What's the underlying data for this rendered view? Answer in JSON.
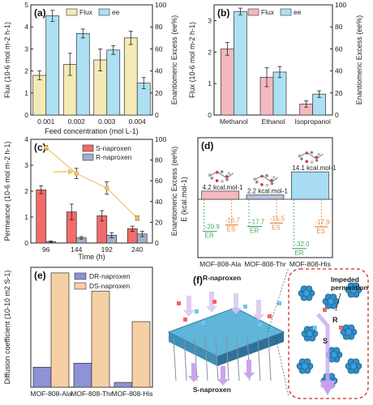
{
  "colors": {
    "flux": "#f4eab6",
    "ee": "#aee0f4",
    "flux_b": "#f4b9bf",
    "ee_b": "#aee0f4",
    "s_naproxen": "#f26b6b",
    "r_naproxen": "#9fb0cc",
    "ee_line": "#f0c56a",
    "bar_d": "#a7dcf3",
    "green": "#4aa86a",
    "orange": "#e38a3b",
    "d_r": "#8e92d6",
    "d_s": "#f7cfa5",
    "frame_f": "#d22c2c"
  },
  "chart_data": [
    {
      "panel": "(a)",
      "type": "bar",
      "categories": [
        "0.001",
        "0.002",
        "0.003",
        "0.004"
      ],
      "xlabel": "Feed concentration (mol L-1)",
      "ylabel": "Flux (10-6 mol m-2 h-1)",
      "y2label": "Enantiomeric Excess (ee%)",
      "ylim": [
        0,
        5
      ],
      "yticks": [
        "0",
        "1",
        "2",
        "3",
        "4",
        "5"
      ],
      "y2lim": [
        0,
        100
      ],
      "y2ticks": [
        "0",
        "20",
        "40",
        "60",
        "80",
        "100"
      ],
      "legend": [
        "Flux",
        "ee"
      ],
      "series": [
        {
          "name": "Flux",
          "values": [
            1.8,
            2.3,
            2.5,
            3.5
          ],
          "err": [
            0.2,
            0.5,
            0.5,
            0.3
          ]
        },
        {
          "name": "ee",
          "values": [
            90,
            74,
            59,
            29
          ],
          "err": [
            5,
            4,
            4,
            5
          ],
          "axis": "right"
        }
      ]
    },
    {
      "panel": "(b)",
      "type": "bar",
      "categories": [
        "Methanol",
        "Ethanol",
        "Isopropanol"
      ],
      "ylabel": "Flux (10-6 mol m-2 h-1)",
      "y2label": "Enantiomeric Excess (ee%)",
      "ylim": [
        0,
        3.5
      ],
      "yticks": [
        "0",
        "1",
        "2",
        "3"
      ],
      "y2lim": [
        0,
        100
      ],
      "y2ticks": [
        "0",
        "20",
        "40",
        "60",
        "80",
        "100"
      ],
      "legend": [
        "Flux",
        "ee"
      ],
      "series": [
        {
          "name": "Flux",
          "values": [
            2.1,
            1.2,
            0.35
          ],
          "err": [
            0.2,
            0.3,
            0.1
          ]
        },
        {
          "name": "ee",
          "values": [
            94,
            39,
            19
          ],
          "err": [
            3,
            5,
            3
          ],
          "axis": "right"
        }
      ]
    },
    {
      "panel": "(c)",
      "type": "bar",
      "categories": [
        "96",
        "144",
        "192",
        "240"
      ],
      "xlabel": "Time (h)",
      "ylabel": "Permeance (10-6 mol m-2 h-1)",
      "y2label": "Enantiomeric Excess (ee%)",
      "ylim": [
        0,
        4
      ],
      "yticks": [
        "0",
        "1",
        "2",
        "3",
        "4"
      ],
      "y2lim": [
        0,
        100
      ],
      "y2ticks": [
        "0",
        "20",
        "40",
        "60",
        "80",
        "100"
      ],
      "legend": [
        "S-naproxen",
        "R-naproxen"
      ],
      "series": [
        {
          "name": "S-naproxen",
          "values": [
            2.05,
            1.2,
            1.05,
            0.55
          ],
          "err": [
            0.15,
            0.3,
            0.2,
            0.1
          ]
        },
        {
          "name": "R-naproxen",
          "values": [
            0.05,
            0.2,
            0.3,
            0.35
          ],
          "err": [
            0.03,
            0.05,
            0.1,
            0.1
          ]
        },
        {
          "name": "ee",
          "type": "line",
          "values": [
            92,
            67,
            53,
            24
          ],
          "err": [
            2,
            5,
            6,
            2
          ],
          "axis": "right"
        }
      ]
    },
    {
      "panel": "(d)",
      "type": "bar",
      "categories": [
        "MOF-808-Ala",
        "MOF-808-Thr",
        "MOF-808-His"
      ],
      "ylabel": "E (kcal.mol-1)",
      "values": [
        4.2,
        2.2,
        14.1
      ],
      "bar_labels": [
        "4.2 kcal.mol-1",
        "2.2 kcal.mol-1",
        "14.1 kcal.mol-1"
      ],
      "ER": [
        -20.9,
        -17.7,
        -32.0
      ],
      "ES": [
        -16.7,
        -15.5,
        -17.9
      ],
      "ER_label": "ER",
      "ES_label": "ES"
    },
    {
      "panel": "(e)",
      "type": "bar",
      "categories": [
        "MOF-808-Ala",
        "MOF-808-Thr",
        "MOF-808-His"
      ],
      "ylabel": "Diffusion coefficient (10-10 m2 S-1)",
      "ylim": [
        0,
        1.5
      ],
      "legend": [
        "DR-naproxen",
        "DS-naproxen"
      ],
      "series": [
        {
          "name": "DR-naproxen",
          "values": [
            0.25,
            0.3,
            0.06
          ]
        },
        {
          "name": "DS-naproxen",
          "values": [
            1.43,
            1.2,
            0.82
          ]
        }
      ]
    }
  ],
  "panel_f": {
    "label": "(f)",
    "r_label": "R-naproxen",
    "s_label": "S-naproxen",
    "impeded_label": "Impeded\npermeation",
    "r_letter": "R",
    "s_letter": "S"
  },
  "panel_labels": {
    "a": "(a)",
    "b": "(b)",
    "c": "(c)",
    "d": "(d)",
    "e": "(e)",
    "f": "(f)"
  }
}
